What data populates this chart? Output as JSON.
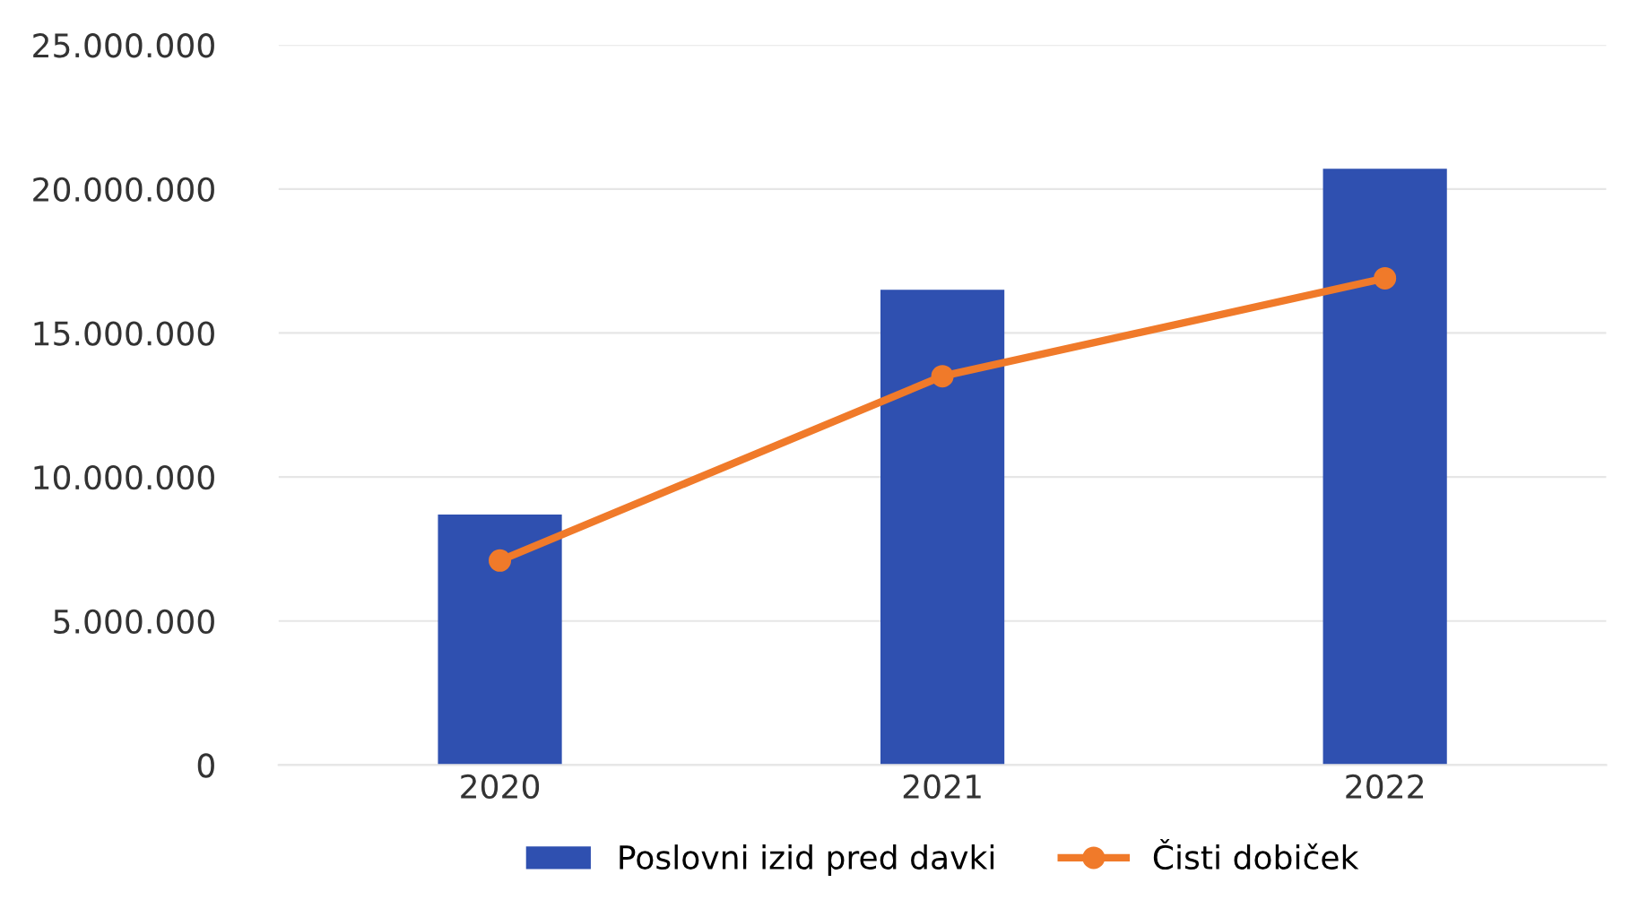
{
  "chart_data": {
    "type": "bar",
    "categories": [
      "2020",
      "2021",
      "2022"
    ],
    "series": [
      {
        "name": "Poslovni izid pred davki",
        "color": "#2f50b0",
        "values": [
          8700000,
          16500000,
          20700000
        ]
      },
      {
        "name": "Čisti dobiček",
        "type": "line",
        "color": "#f07a2a",
        "values": [
          7100000,
          13500000,
          16900000
        ],
        "marker": "circle"
      }
    ],
    "ylim": [
      0,
      25000000
    ],
    "yticks": [
      {
        "value": 0,
        "label": "0"
      },
      {
        "value": 5000000,
        "label": "5.000.000"
      },
      {
        "value": 10000000,
        "label": "10.000.000"
      },
      {
        "value": 15000000,
        "label": "15.000.000"
      },
      {
        "value": 20000000,
        "label": "20.000.000"
      },
      {
        "value": 25000000,
        "label": "25.000.000"
      }
    ],
    "grid": "y",
    "legend": "bottom"
  }
}
